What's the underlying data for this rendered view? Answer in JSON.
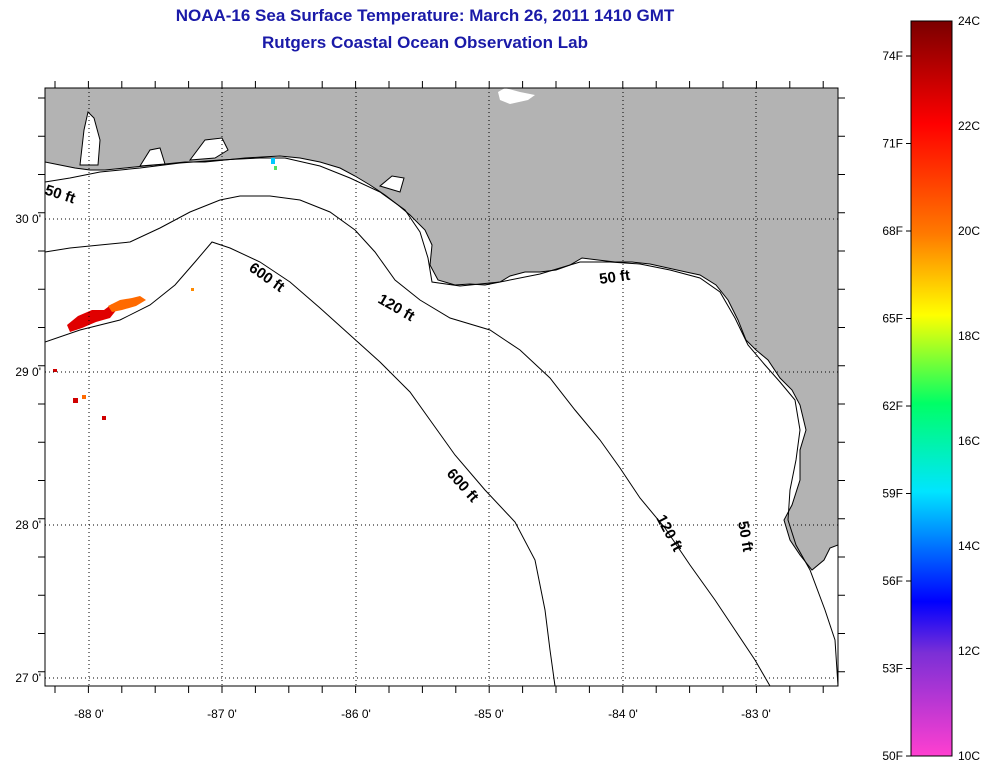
{
  "title": "NOAA-16 Sea Surface Temperature:  March 26, 2011 1410 GMT",
  "subtitle": "Rutgers Coastal Ocean Observation Lab",
  "map": {
    "lat_ticks": [
      "30 0'",
      "29 0'",
      "28 0'",
      "27 0'"
    ],
    "lon_ticks": [
      "-88 0'",
      "-87 0'",
      "-86 0'",
      "-85 0'",
      "-84 0'",
      "-83 0'"
    ],
    "land_color": "#b3b3b3",
    "water_color": "#ffffff",
    "depth_labels": {
      "d50_west": "50 ft",
      "d50_east": "50 ft",
      "d50_south": "50 ft",
      "d120_north": "120 ft",
      "d120_south": "120 ft",
      "d600_north": "600 ft",
      "d600_south": "600 ft"
    }
  },
  "colorbar": {
    "fahrenheit_labels": [
      "74F",
      "71F",
      "68F",
      "65F",
      "62F",
      "59F",
      "56F",
      "53F",
      "50F"
    ],
    "celsius_labels": [
      "24C",
      "22C",
      "20C",
      "18C",
      "16C",
      "14C",
      "12C",
      "10C"
    ],
    "colors": [
      "#7a0000",
      "#ff0000",
      "#ff7a00",
      "#ffff00",
      "#00ff66",
      "#00e5ff",
      "#0000ff",
      "#7b2fd6",
      "#ff3fd0"
    ]
  }
}
